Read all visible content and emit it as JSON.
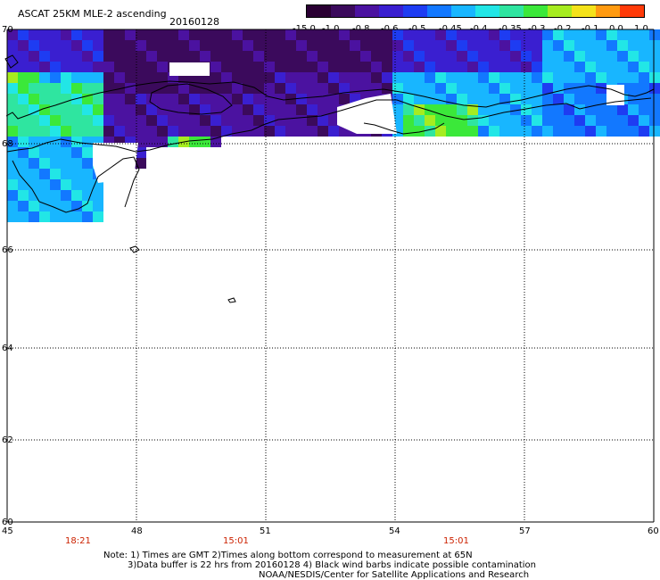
{
  "header": {
    "title": "ASCAT 25KM MLE-2 ascending",
    "date": "20160128"
  },
  "colorbar": {
    "labels": [
      "-15.0",
      "-1.0",
      "-0.8",
      "-0.6",
      "-0.5",
      "-0.45",
      "-0.4",
      "-0.35",
      "-0.3",
      "-0.2",
      "-0.1",
      "0.0",
      "1.0"
    ],
    "colors": [
      "#2a0033",
      "#3b0a5c",
      "#4b12a0",
      "#3a1fd0",
      "#1e3cf2",
      "#1278ff",
      "#18b6ff",
      "#22e6e6",
      "#2fe5a0",
      "#3be83a",
      "#a6ec20",
      "#f4e21a",
      "#ff9a10",
      "#ff3a08"
    ]
  },
  "map": {
    "lat_labels": [
      "70",
      "68",
      "66",
      "64",
      "62",
      "60"
    ],
    "lon_labels": [
      "45",
      "48",
      "51",
      "54",
      "57",
      "60"
    ],
    "lat_values": [
      70,
      68,
      66,
      64,
      62,
      60
    ],
    "lon_values": [
      45,
      48,
      51,
      54,
      57,
      60
    ],
    "lat_range": [
      60,
      70
    ],
    "lon_range": [
      45,
      60
    ],
    "grid": "dotted",
    "coastline_color": "#000000"
  },
  "times": [
    "18:21",
    "15:01",
    "15:01"
  ],
  "notes": {
    "line1": "Note: 1) Times are GMT 2)Times along bottom correspond to measurement at 65N",
    "line2": "3)Data buffer is 22 hrs from 20160128 4) Black wind barbs indicate possible contamination",
    "line3": "NOAA/NESDIS/Center for Satellite Applications and Research"
  }
}
